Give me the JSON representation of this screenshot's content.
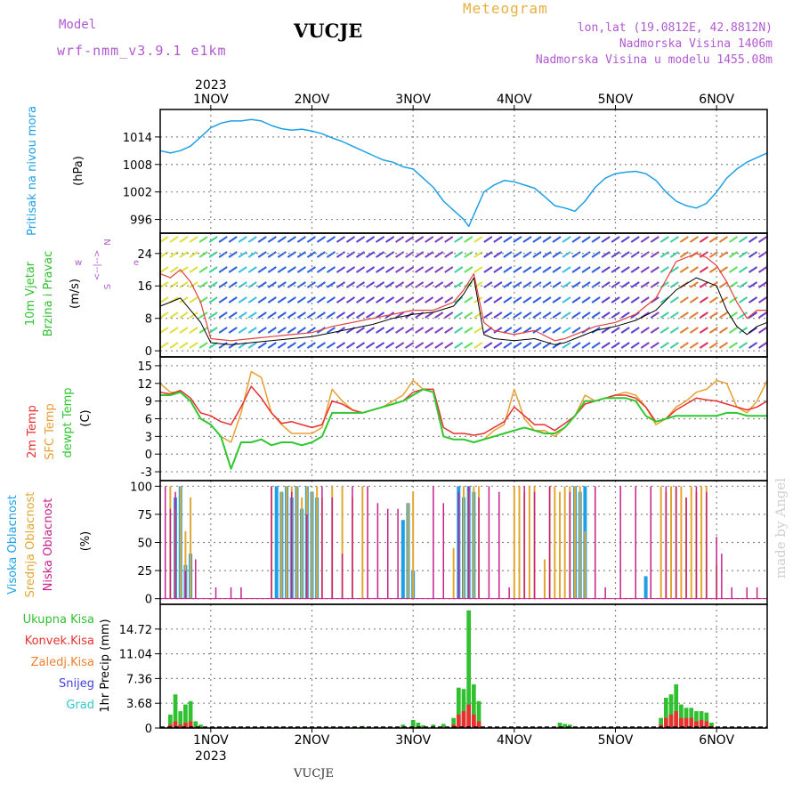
{
  "header": {
    "model_label": "Model",
    "model_name": "wrf-nmm_v3.9.1  e1km",
    "station": "VUCJE",
    "product": "Meteogram",
    "coords": "lon,lat (19.0812E, 42.8812N)",
    "elevation": "Nadmorska Visina 1406m",
    "model_elevation": "Nadmorska Visina u modelu 1455.08m",
    "footer_station": "VUCJE",
    "watermark": "made by Angel"
  },
  "colors": {
    "pressure": "#1ea0e6",
    "temp2m": "#e83030",
    "sfc": "#e8a030",
    "dewpt": "#30c830",
    "high_cloud": "#1ea0e6",
    "mid_cloud": "#e0a830",
    "low_cloud": "#c8208c",
    "total_precip": "#30c030",
    "conv_precip": "#e83030",
    "grid": "#888888",
    "purple_label": "#b05ad0"
  },
  "chart_data": [
    {
      "type": "line",
      "panel": "pressure",
      "ylabel": "Pritisak na nivou mora",
      "unit": "(hPa)",
      "yticks": [
        "1014",
        "1008",
        "1002",
        "996"
      ],
      "ylim": [
        993,
        1020
      ],
      "x": [
        0.5,
        0.6,
        0.7,
        0.8,
        0.9,
        1.0,
        1.1,
        1.2,
        1.3,
        1.4,
        1.5,
        1.6,
        1.7,
        1.8,
        1.9,
        2.0,
        2.1,
        2.2,
        2.3,
        2.4,
        2.5,
        2.6,
        2.7,
        2.8,
        2.9,
        3.0,
        3.1,
        3.2,
        3.3,
        3.4,
        3.5,
        3.55,
        3.6,
        3.7,
        3.8,
        3.9,
        4.0,
        4.1,
        4.2,
        4.3,
        4.4,
        4.5,
        4.6,
        4.7,
        4.8,
        4.9,
        5.0,
        5.1,
        5.2,
        5.3,
        5.4,
        5.5,
        5.6,
        5.7,
        5.8,
        5.9,
        6.0,
        6.1,
        6.2,
        6.3,
        6.4,
        6.5
      ],
      "series": [
        {
          "values": [
            1011,
            1010.5,
            1011,
            1012,
            1014,
            1016,
            1017,
            1017.5,
            1017.5,
            1017.8,
            1017.5,
            1016.5,
            1015.8,
            1015.5,
            1015.7,
            1015.3,
            1014.7,
            1013.8,
            1013,
            1012,
            1011,
            1010,
            1009,
            1008.5,
            1007.5,
            1007,
            1005,
            1003,
            1000,
            998,
            996,
            994.5,
            997,
            1002,
            1003.5,
            1004.5,
            1004.2,
            1003.5,
            1002.8,
            1001,
            999,
            998.5,
            997.8,
            1000,
            1003,
            1005,
            1006,
            1006.3,
            1006.5,
            1006,
            1004.5,
            1002,
            1000,
            999,
            998.5,
            999.5,
            1002,
            1005,
            1007,
            1008.5,
            1009.5,
            1010.5
          ]
        }
      ]
    },
    {
      "type": "line",
      "panel": "wind",
      "ylabel": [
        "10m Vjetar",
        "Brzina i Pravac"
      ],
      "unit": "(m/s)",
      "yticks": [
        "24",
        "16",
        "8",
        "0"
      ],
      "ylim": [
        -1.5,
        29
      ],
      "x": [
        0.5,
        0.6,
        0.7,
        0.8,
        0.9,
        1.0,
        1.2,
        1.4,
        1.6,
        1.8,
        2.0,
        2.2,
        2.4,
        2.6,
        2.8,
        3.0,
        3.2,
        3.4,
        3.5,
        3.6,
        3.7,
        3.8,
        4.0,
        4.2,
        4.4,
        4.5,
        4.6,
        4.8,
        5.0,
        5.2,
        5.4,
        5.6,
        5.8,
        5.9,
        6.0,
        6.1,
        6.2,
        6.3,
        6.4,
        6.5
      ],
      "series": [
        {
          "values": [
            11,
            12,
            13,
            10,
            7,
            2,
            1.5,
            2,
            2.5,
            3,
            3.5,
            4.5,
            5.5,
            6.5,
            8,
            9,
            9.5,
            11,
            14,
            18,
            4,
            3,
            2.5,
            3,
            1.5,
            2,
            3,
            5,
            6,
            7.5,
            10,
            15,
            18,
            17,
            16,
            10,
            6,
            4,
            6,
            7
          ]
        },
        {
          "values": [
            19,
            18,
            20,
            17,
            12,
            3,
            2.5,
            3,
            3.5,
            4,
            4.5,
            6,
            7,
            8,
            9,
            10,
            10,
            12,
            15,
            19,
            7,
            5,
            4,
            5,
            2.5,
            3,
            4,
            6,
            7,
            9,
            13,
            22,
            24,
            23,
            21,
            17,
            12,
            8,
            10,
            10
          ]
        }
      ],
      "direction_legend": [
        "w",
        "<--|-->",
        "e",
        "N",
        "S"
      ]
    },
    {
      "type": "line",
      "panel": "temperature",
      "ylabel": [
        "2m Temp",
        "SFC Temp",
        "dewpt Temp"
      ],
      "unit": "(C)",
      "yticks": [
        "15",
        "12",
        "9",
        "6",
        "3",
        "0",
        "-3"
      ],
      "ylim": [
        -4.5,
        16.5
      ],
      "x": [
        0.5,
        0.6,
        0.7,
        0.8,
        0.9,
        1.0,
        1.1,
        1.2,
        1.3,
        1.4,
        1.5,
        1.6,
        1.7,
        1.8,
        1.9,
        2.0,
        2.1,
        2.2,
        2.3,
        2.4,
        2.5,
        2.6,
        2.7,
        2.8,
        2.9,
        3.0,
        3.1,
        3.2,
        3.3,
        3.4,
        3.5,
        3.6,
        3.7,
        3.8,
        3.9,
        4.0,
        4.1,
        4.2,
        4.3,
        4.4,
        4.5,
        4.6,
        4.7,
        4.8,
        4.9,
        5.0,
        5.1,
        5.2,
        5.3,
        5.4,
        5.5,
        5.6,
        5.7,
        5.8,
        5.9,
        6.0,
        6.1,
        6.2,
        6.3,
        6.4,
        6.5
      ],
      "series": [
        {
          "name": "2m Temp",
          "values": [
            10.5,
            10.2,
            10.8,
            9.5,
            7,
            6.5,
            5.5,
            5,
            8,
            11.5,
            9.5,
            7,
            5.2,
            5.5,
            5,
            4.5,
            5,
            9,
            8.5,
            7.5,
            7,
            7.5,
            8,
            8.5,
            9,
            10.5,
            11,
            11,
            4.5,
            3.5,
            3.5,
            3.2,
            3.5,
            4.5,
            5.5,
            8,
            6.5,
            5,
            5,
            4,
            5.2,
            6.5,
            8.5,
            9,
            9.5,
            10,
            10,
            9.5,
            8,
            5.5,
            6,
            7.5,
            8.5,
            9.5,
            9.2,
            9,
            8.5,
            8,
            7.5,
            8,
            9
          ]
        },
        {
          "name": "SFC Temp",
          "values": [
            12,
            10.5,
            10.5,
            9,
            6,
            5,
            3,
            2,
            7,
            14,
            13,
            7,
            5,
            3.5,
            3.5,
            3.5,
            4.5,
            11,
            9,
            7.5,
            7,
            7.5,
            8,
            9,
            10,
            12.5,
            11,
            11,
            3,
            2.5,
            2.5,
            2,
            2.5,
            4,
            5,
            11,
            6,
            4,
            4,
            3,
            4.5,
            6.5,
            10,
            9,
            9.5,
            10,
            10.5,
            10,
            8,
            5,
            6,
            8,
            9,
            10.5,
            11,
            12.5,
            12,
            8,
            7,
            9,
            12.5
          ]
        },
        {
          "name": "dewpt Temp",
          "values": [
            10,
            10,
            10.5,
            9,
            6,
            5,
            3,
            -2.5,
            2,
            2,
            2.5,
            1.5,
            2,
            2,
            1.5,
            2,
            3,
            7,
            7,
            7,
            7,
            7.5,
            8,
            8.5,
            9,
            10,
            11,
            10.5,
            3,
            2.5,
            2.5,
            2,
            2.5,
            3,
            3.5,
            4,
            4.5,
            4,
            3.5,
            3.5,
            4.5,
            6.5,
            9,
            9,
            9.5,
            9.5,
            9.5,
            9,
            6.5,
            5.5,
            6,
            6.5,
            6.5,
            6.5,
            6.5,
            6.5,
            7,
            7,
            6.5,
            6.5,
            6.5
          ]
        }
      ]
    },
    {
      "type": "bar",
      "panel": "clouds",
      "ylabel": [
        "Visoka Oblacnost",
        "Srednja Oblacnost",
        "Niska Oblacnost"
      ],
      "unit": "(%)",
      "yticks": [
        "100",
        "75",
        "50",
        "25",
        "0"
      ],
      "ylim": [
        -5,
        105
      ],
      "series": [
        {
          "name": "Visoka Oblacnost",
          "x": [
            0.65,
            0.7,
            0.75,
            0.8,
            1.65,
            1.7,
            1.75,
            1.8,
            1.85,
            1.9,
            1.95,
            2.0,
            2.05,
            2.9,
            2.95,
            3.0,
            3.45,
            3.5,
            3.55,
            3.6,
            4.6,
            4.65,
            4.7,
            5.3
          ],
          "values": [
            90,
            100,
            30,
            40,
            100,
            95,
            100,
            90,
            100,
            80,
            100,
            95,
            90,
            70,
            85,
            25,
            100,
            90,
            100,
            95,
            100,
            95,
            100,
            20
          ]
        },
        {
          "name": "Srednja Oblacnost",
          "x": [
            0.6,
            0.65,
            0.7,
            0.75,
            0.8,
            1.6,
            1.7,
            1.75,
            1.8,
            1.85,
            1.9,
            1.95,
            2.0,
            2.05,
            2.1,
            2.2,
            2.3,
            2.4,
            2.5,
            2.95,
            3.0,
            3.4,
            3.5,
            3.55,
            3.6,
            3.65,
            4.0,
            4.05,
            4.1,
            4.15,
            4.2,
            4.3,
            4.35,
            4.4,
            4.45,
            4.5,
            4.55,
            4.6,
            4.65,
            4.7,
            5.45,
            5.5,
            5.55,
            5.6,
            5.65,
            5.7,
            5.75,
            5.8,
            5.85,
            5.9,
            6.0
          ],
          "values": [
            100,
            80,
            100,
            60,
            90,
            100,
            95,
            100,
            100,
            100,
            90,
            100,
            95,
            100,
            90,
            100,
            100,
            90,
            100,
            85,
            95,
            45,
            100,
            95,
            100,
            100,
            100,
            100,
            95,
            100,
            100,
            35,
            100,
            100,
            95,
            100,
            100,
            100,
            100,
            60,
            100,
            95,
            100,
            100,
            100,
            90,
            100,
            95,
            100,
            100,
            30
          ]
        },
        {
          "name": "Niska Oblacnost",
          "x": [
            0.55,
            0.6,
            0.65,
            0.75,
            0.85,
            1.05,
            1.2,
            1.3,
            1.6,
            1.8,
            1.95,
            2.1,
            2.2,
            2.3,
            2.4,
            2.55,
            2.65,
            2.75,
            2.85,
            3.2,
            3.3,
            3.45,
            3.55,
            3.65,
            3.75,
            3.85,
            3.95,
            4.1,
            4.2,
            4.35,
            4.55,
            4.8,
            4.9,
            5.05,
            5.2,
            5.35,
            5.5,
            5.6,
            5.7,
            5.8,
            5.9,
            6.0,
            6.05,
            6.15,
            6.3,
            6.4
          ],
          "values": [
            100,
            80,
            95,
            25,
            35,
            10,
            10,
            10,
            100,
            95,
            75,
            100,
            90,
            40,
            100,
            100,
            85,
            80,
            80,
            100,
            85,
            95,
            100,
            90,
            100,
            95,
            10,
            100,
            95,
            100,
            95,
            100,
            10,
            100,
            100,
            100,
            100,
            100,
            90,
            100,
            95,
            55,
            40,
            10,
            10,
            10
          ]
        }
      ]
    },
    {
      "type": "bar",
      "panel": "precip",
      "ylabel": [
        "1hr Precip",
        "(mm)"
      ],
      "legend": [
        "Ukupna  Kisa",
        "Konvek.Kisa",
        "Zaledj.Kisa",
        "Snijeg",
        "Grad"
      ],
      "yticks": [
        "14.72",
        "11.04",
        "7.36",
        "3.68",
        "0"
      ],
      "ylim": [
        0,
        18.4
      ],
      "x": [
        0.6,
        0.65,
        0.7,
        0.75,
        0.8,
        0.85,
        0.9,
        2.5,
        2.9,
        3.0,
        3.05,
        3.1,
        3.2,
        3.3,
        3.4,
        3.45,
        3.5,
        3.55,
        3.6,
        3.65,
        4.45,
        4.5,
        4.55,
        4.6,
        5.45,
        5.5,
        5.55,
        5.6,
        5.65,
        5.7,
        5.75,
        5.8,
        5.85,
        5.9,
        5.95
      ],
      "series": [
        {
          "name": "Ukupna  Kisa",
          "values": [
            2,
            5,
            2.5,
            3.5,
            4,
            1,
            0.5,
            0.3,
            0.5,
            1.2,
            0.8,
            0.4,
            0.5,
            0.6,
            1.5,
            6,
            5.8,
            17.5,
            6.5,
            4,
            0.8,
            0.6,
            0.5,
            0.2,
            1.5,
            4.5,
            5,
            6.5,
            3.5,
            3,
            3,
            2.5,
            2.5,
            2.3,
            0.8
          ]
        },
        {
          "name": "Konvek.Kisa",
          "values": [
            0.5,
            1,
            0.5,
            0.8,
            1,
            0.2,
            0.1,
            0,
            0.1,
            0.2,
            0.1,
            0.1,
            0.1,
            0.1,
            0.5,
            2,
            2.5,
            3.5,
            2,
            1,
            0.2,
            0.1,
            0.1,
            0,
            0.5,
            1.5,
            2,
            2.5,
            1.5,
            1.5,
            1.5,
            1,
            1.2,
            1,
            0.3
          ]
        }
      ]
    }
  ],
  "x_axis": {
    "top_labels": [
      "1NOV",
      "2NOV",
      "3NOV",
      "4NOV",
      "5NOV",
      "6NOV"
    ],
    "bottom_labels": [
      "1NOV",
      "2NOV",
      "3NOV",
      "4NOV",
      "5NOV",
      "6NOV"
    ],
    "year_top": "2023",
    "year_bottom": "2023",
    "xlim": [
      0.5,
      6.5
    ]
  }
}
